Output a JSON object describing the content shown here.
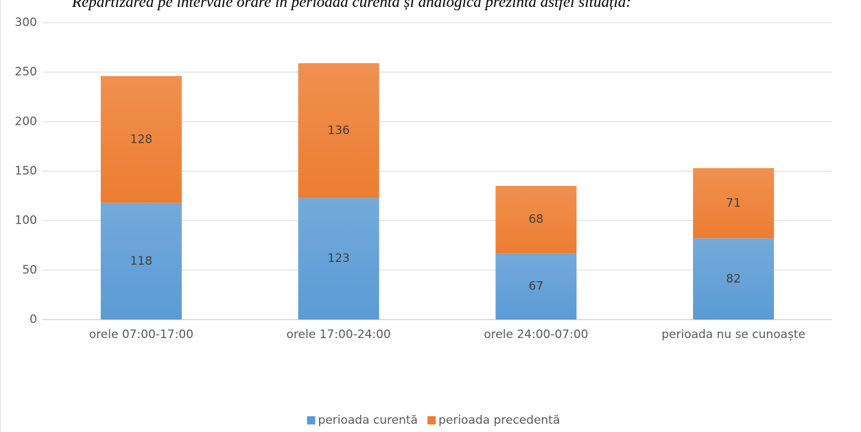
{
  "chart_data": {
    "type": "stacked_bar",
    "title": "Repartizarea pe intervale orare în perioada curentă și analogică prezintă astfel situația:",
    "categories": [
      "orele 07:00-17:00",
      "orele 17:00-24:00",
      "orele 24:00-07:00",
      "perioada nu se cunoaște"
    ],
    "series": [
      {
        "name": "perioada curentă",
        "color": "#5b9bd5",
        "values": [
          118,
          123,
          67,
          82
        ]
      },
      {
        "name": "perioada precedentă",
        "color": "#ed7d31",
        "values": [
          128,
          136,
          68,
          71
        ]
      }
    ],
    "ylim": [
      0,
      300
    ],
    "yticks": [
      0,
      50,
      100,
      150,
      200,
      250,
      300
    ],
    "grid": true,
    "legend": "bottom"
  }
}
